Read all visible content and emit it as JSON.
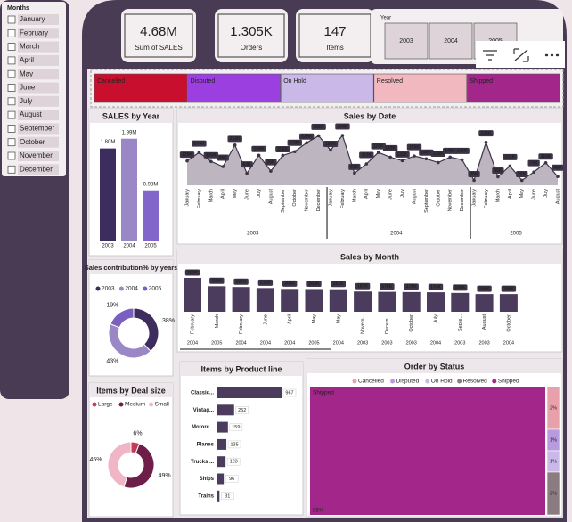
{
  "slicer": {
    "title": "Months",
    "items": [
      "January",
      "February",
      "March",
      "April",
      "May",
      "June",
      "July",
      "August",
      "September",
      "October",
      "November",
      "December"
    ]
  },
  "kpis": [
    {
      "value": "4.68M",
      "label": "Sum of SALES"
    },
    {
      "value": "1.305K",
      "label": "Orders"
    },
    {
      "value": "147",
      "label": "Items"
    }
  ],
  "year_slicer": {
    "title": "Year",
    "items": [
      "2003",
      "2004",
      "2005"
    ]
  },
  "status_filter": {
    "items": [
      {
        "name": "Cancelled",
        "color": "#c8102e"
      },
      {
        "name": "Disputed",
        "color": "#9b3fe0"
      },
      {
        "name": "On Hold",
        "color": "#c9b8e8"
      },
      {
        "name": "Resolved",
        "color": "#f2b8c0"
      },
      {
        "name": "Shipped",
        "color": "#a3268a"
      }
    ]
  },
  "chart_data": [
    {
      "type": "bar",
      "title": "SALES by Year",
      "categories": [
        "2003",
        "2004",
        "2005"
      ],
      "values": [
        1.8,
        1.99,
        0.98
      ],
      "value_labels": [
        "1.80M",
        "1.99M",
        "0.98M"
      ],
      "colors": [
        "#3d2c5e",
        "#9a88c6",
        "#8366c9"
      ]
    },
    {
      "type": "area",
      "title": "Sales by Date",
      "color": "#bdb6c0",
      "categories": [
        "January",
        "February",
        "March",
        "April",
        "May",
        "June",
        "July",
        "August",
        "September",
        "October",
        "November",
        "December",
        "January",
        "February",
        "March",
        "April",
        "May",
        "June",
        "July",
        "August",
        "September",
        "October",
        "November",
        "December",
        "January",
        "February",
        "March",
        "April",
        "May",
        "June",
        "July",
        "August"
      ],
      "years": [
        "2003",
        "2003",
        "2003",
        "2003",
        "2003",
        "2003",
        "2003",
        "2003",
        "2003",
        "2003",
        "2003",
        "2003",
        "2004",
        "2004",
        "2004",
        "2004",
        "2004",
        "2004",
        "2004",
        "2004",
        "2004",
        "2004",
        "2004",
        "2004",
        "2005",
        "2005",
        "2005",
        "2005",
        "2005",
        "2005",
        "2005",
        "2005"
      ],
      "values": [
        129,
        174,
        126,
        99,
        213,
        63,
        159,
        75,
        158,
        178,
        225,
        262,
        186,
        264,
        64,
        113,
        174,
        149,
        130,
        155,
        140,
        120,
        149,
        135,
        26,
        228,
        45,
        102,
        26,
        70,
        119,
        46
      ],
      "value_labels": [
        "129K",
        "174K",
        "126K",
        "99K",
        "213K",
        "63K",
        "159K",
        "75K",
        "158K",
        "178K",
        "225K",
        "262K",
        "186K",
        "264K",
        "64K",
        "113K",
        "174K",
        "149K",
        "130K",
        "155K",
        "140K",
        "120K",
        "149K",
        "135K",
        "26K",
        "228K",
        "45K",
        "102K",
        "26K",
        "70K",
        "119K",
        "46K"
      ]
    },
    {
      "type": "donut",
      "title": "Sales contribution% by years",
      "categories": [
        "2003",
        "2004",
        "2005"
      ],
      "values": [
        38,
        43,
        19
      ],
      "value_labels": [
        "38%",
        "43%",
        "19%"
      ],
      "colors": [
        "#3d2c5e",
        "#9a88c6",
        "#7b5fc0"
      ]
    },
    {
      "type": "bar",
      "title": "Sales by Month",
      "color": "#4b3c5e",
      "categories": [
        "February",
        "March",
        "February",
        "June",
        "April",
        "May",
        "May",
        "Novem...",
        "Decem...",
        "October",
        "July",
        "Septe...",
        "August",
        "October"
      ],
      "years": [
        "2004",
        "2005",
        "2004",
        "2004",
        "2004",
        "2005",
        "2004",
        "2003",
        "2003",
        "2003",
        "2004",
        "2003",
        "2003",
        "2004"
      ],
      "values": [
        302,
        228,
        221,
        212,
        204,
        203,
        201,
        181,
        178,
        176,
        174,
        168,
        158,
        158
      ],
      "value_labels": [
        "302K",
        "228K",
        "221K",
        "212K",
        "204K",
        "203K",
        "201K",
        "181K",
        "178K",
        "176K",
        "174K",
        "168K",
        "158K",
        "158K"
      ]
    },
    {
      "type": "hbar",
      "title": "Items by Product line",
      "color": "#4b3c5e",
      "categories": [
        "Classic...",
        "Vintag...",
        "Motorc...",
        "Planes",
        "Trucks ...",
        "Ships",
        "Trains"
      ],
      "values": [
        967,
        252,
        159,
        135,
        123,
        96,
        31
      ]
    },
    {
      "type": "donut",
      "title": "Items by Deal size",
      "categories": [
        "Large",
        "Medium",
        "Small"
      ],
      "values": [
        6,
        49,
        45
      ],
      "value_labels": [
        "6%",
        "49%",
        "45%"
      ],
      "colors": [
        "#c23b5a",
        "#6d1f4a",
        "#f0b6c6"
      ]
    },
    {
      "type": "treemap",
      "title": "Order by Status",
      "categories": [
        "Cancelled",
        "Disputed",
        "On Hold",
        "Resolved",
        "Shipped"
      ],
      "values": [
        2,
        1,
        1,
        2,
        85
      ],
      "value_labels": [
        "2%",
        "1%",
        "1%",
        "2%",
        "85%"
      ],
      "colors": [
        "#e8a0aa",
        "#b89ae0",
        "#c9b8e8",
        "#8a7c80",
        "#a3268a"
      ]
    }
  ]
}
